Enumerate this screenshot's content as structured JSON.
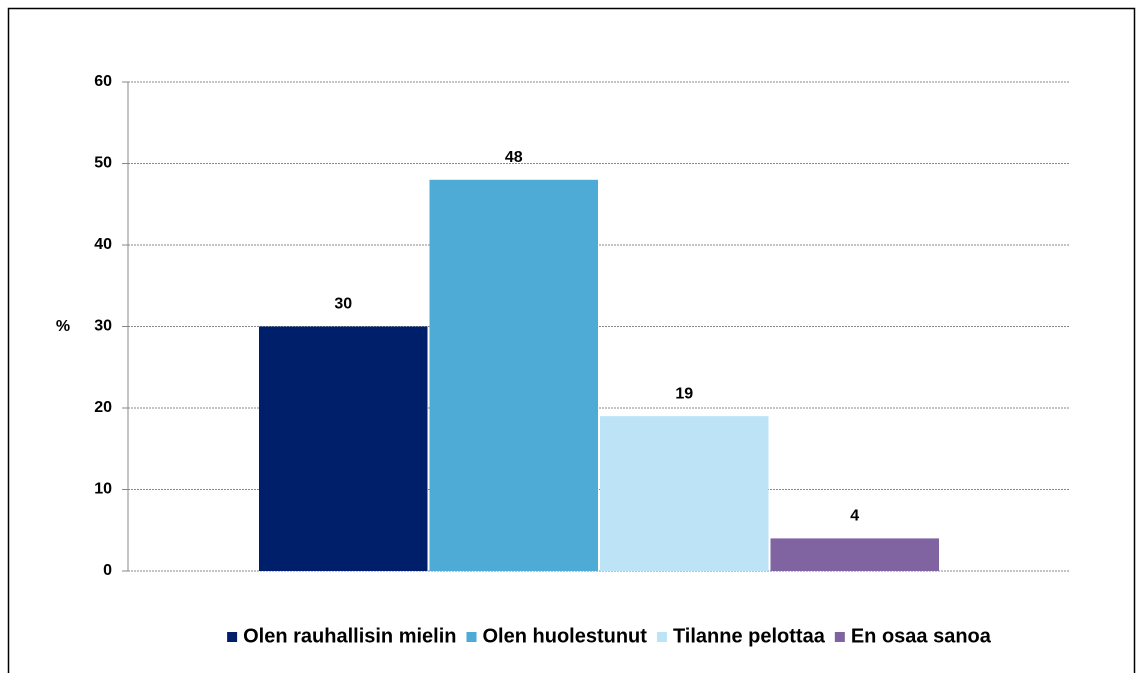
{
  "chart_data": {
    "type": "bar",
    "y_label": "%",
    "series": [
      {
        "name": "Olen rauhallisin mielin",
        "color": "#001f6a",
        "values": [
          30
        ]
      },
      {
        "name": "Olen huolestunut",
        "color": "#4eabd5",
        "values": [
          48
        ]
      },
      {
        "name": "Tilanne pelottaa",
        "color": "#bde3f6",
        "values": [
          19
        ]
      },
      {
        "name": "En osaa sanoa",
        "color": "#8064a2",
        "values": [
          4
        ]
      }
    ],
    "ylim": [
      0,
      60
    ],
    "yticks": [
      0,
      10,
      20,
      30,
      40,
      50,
      60
    ],
    "grid": true,
    "legend": "bottom"
  }
}
